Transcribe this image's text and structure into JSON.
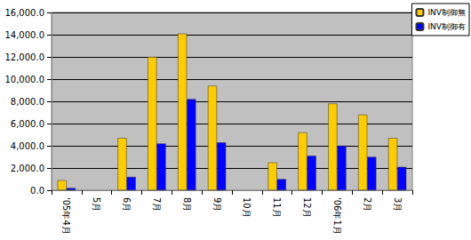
{
  "chart_data": {
    "type": "bar",
    "categories": [
      "'05年4月",
      "5月",
      "6月",
      "7月",
      "8月",
      "9月",
      "10月",
      "11月",
      "12月",
      "'06年1月",
      "2月",
      "3月"
    ],
    "series": [
      {
        "name": "INV制御無",
        "color": "#ffcc00",
        "values": [
          900,
          null,
          4700,
          12000,
          14100,
          9400,
          null,
          2500,
          5200,
          7800,
          6800,
          4700
        ]
      },
      {
        "name": "INV制御有",
        "color": "#0000ff",
        "values": [
          200,
          null,
          1200,
          4200,
          8200,
          4300,
          null,
          1000,
          3100,
          4000,
          3000,
          2100
        ]
      }
    ],
    "ylim": [
      0,
      16000
    ],
    "yticks": [
      {
        "value": 0,
        "label": "0.0"
      },
      {
        "value": 2000,
        "label": "2,000.0"
      },
      {
        "value": 4000,
        "label": "4,000.0"
      },
      {
        "value": 6000,
        "label": "6,000.0"
      },
      {
        "value": 8000,
        "label": "8,000.0"
      },
      {
        "value": 10000,
        "label": "10,000.0"
      },
      {
        "value": 12000,
        "label": "12,000.0"
      },
      {
        "value": 14000,
        "label": "14,000.0"
      },
      {
        "value": 16000,
        "label": "16,000.0"
      }
    ],
    "grid": true,
    "legend": "top-right"
  }
}
